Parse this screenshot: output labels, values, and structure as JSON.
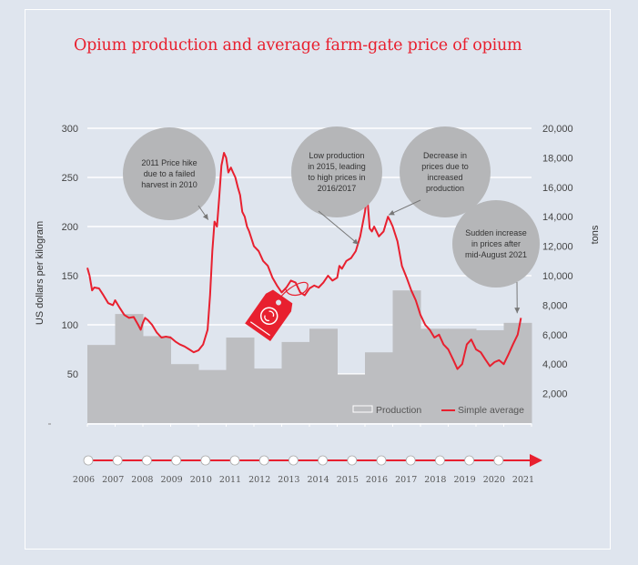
{
  "chart_data": {
    "type": "bar",
    "title": "Opium production and average farm-gate price of opium",
    "xlabel": "",
    "ylabel": "US dollars per kilogram",
    "y2label": "tons",
    "ylim": [
      0,
      300
    ],
    "y2lim": [
      0,
      20000
    ],
    "yticks": [
      "300",
      "250",
      "200",
      "150",
      "100",
      "50"
    ],
    "yticks_values": [
      300,
      250,
      200,
      150,
      100,
      50
    ],
    "y2ticks": [
      "20,000",
      "18,000",
      "16,000",
      "14,000",
      "12,000",
      "10,000",
      "8,000",
      "6,000",
      "4,000",
      "2,000"
    ],
    "y2ticks_values": [
      20000,
      18000,
      16000,
      14000,
      12000,
      10000,
      8000,
      6000,
      4000,
      2000
    ],
    "grid": true,
    "categories": [
      "2006",
      "2007",
      "2008",
      "2009",
      "2010",
      "2011",
      "2012",
      "2013",
      "2014",
      "2015",
      "2016",
      "2017",
      "2018",
      "2019",
      "2020",
      "2021"
    ],
    "series": [
      {
        "name": "Production",
        "type": "bar",
        "axis": "right",
        "color": "#bdbec1",
        "values": [
          5300,
          7400,
          5900,
          4000,
          3600,
          5800,
          3700,
          5500,
          6400,
          3300,
          4800,
          9000,
          6400,
          6400,
          6300,
          6800
        ]
      },
      {
        "name": "Simple average",
        "type": "line",
        "axis": "left",
        "color": "#e8202f",
        "x": [
          2006.0,
          2006.08,
          2006.17,
          2006.25,
          2006.42,
          2006.58,
          2006.75,
          2006.92,
          2007.0,
          2007.17,
          2007.33,
          2007.5,
          2007.67,
          2007.83,
          2007.92,
          2008.0,
          2008.08,
          2008.17,
          2008.33,
          2008.5,
          2008.67,
          2008.83,
          2009.0,
          2009.17,
          2009.33,
          2009.5,
          2009.67,
          2009.83,
          2010.0,
          2010.17,
          2010.33,
          2010.42,
          2010.5,
          2010.58,
          2010.67,
          2010.75,
          2010.83,
          2010.92,
          2011.0,
          2011.08,
          2011.17,
          2011.25,
          2011.33,
          2011.42,
          2011.5,
          2011.58,
          2011.67,
          2011.75,
          2011.83,
          2012.0,
          2012.17,
          2012.33,
          2012.5,
          2012.67,
          2012.83,
          2013.0,
          2013.17,
          2013.33,
          2013.5,
          2013.67,
          2013.83,
          2014.0,
          2014.17,
          2014.33,
          2014.5,
          2014.67,
          2014.83,
          2015.0,
          2015.08,
          2015.17,
          2015.33,
          2015.5,
          2015.67,
          2015.83,
          2016.0,
          2016.08,
          2016.17,
          2016.25,
          2016.33,
          2016.5,
          2016.67,
          2016.83,
          2016.92,
          2017.0,
          2017.17,
          2017.33,
          2017.5,
          2017.67,
          2017.83,
          2018.0,
          2018.17,
          2018.33,
          2018.5,
          2018.67,
          2018.83,
          2019.0,
          2019.17,
          2019.33,
          2019.5,
          2019.67,
          2019.83,
          2020.0,
          2020.17,
          2020.33,
          2020.5,
          2020.67,
          2020.83,
          2021.0,
          2021.17,
          2021.33,
          2021.5,
          2021.62
        ],
        "values": [
          158,
          150,
          135,
          138,
          137,
          130,
          122,
          120,
          125,
          117,
          110,
          107,
          108,
          100,
          95,
          102,
          107,
          105,
          100,
          92,
          87,
          88,
          87,
          83,
          80,
          78,
          75,
          72,
          74,
          80,
          95,
          130,
          175,
          205,
          200,
          230,
          262,
          275,
          270,
          255,
          260,
          255,
          250,
          240,
          232,
          215,
          210,
          200,
          195,
          180,
          175,
          165,
          160,
          148,
          140,
          133,
          138,
          145,
          143,
          133,
          130,
          137,
          140,
          138,
          143,
          150,
          145,
          148,
          160,
          157,
          165,
          168,
          175,
          190,
          215,
          232,
          198,
          195,
          200,
          190,
          195,
          210,
          205,
          200,
          185,
          160,
          148,
          135,
          125,
          110,
          100,
          95,
          87,
          90,
          80,
          75,
          65,
          55,
          60,
          80,
          85,
          75,
          72,
          65,
          58,
          62,
          64,
          60,
          70,
          80,
          90,
          107
        ]
      }
    ],
    "legend": {
      "position": "bottom-right",
      "items": [
        {
          "label": "Production",
          "kind": "box",
          "color": "#bdbec1"
        },
        {
          "label": "Simple average",
          "kind": "line",
          "color": "#e8202f"
        }
      ]
    },
    "annotations": [
      {
        "text": [
          "2011 Price hike",
          "due to a failed",
          "harvest in 2010"
        ],
        "points_to": {
          "x": 2010.42,
          "y": 205
        }
      },
      {
        "text": [
          "Low production",
          "in 2015, leading",
          "to high prices in",
          "2016/2017"
        ],
        "points_to": {
          "x": 2015.83,
          "y": 180
        }
      },
      {
        "text": [
          "Decrease in",
          "prices due to",
          "increased",
          "production"
        ],
        "points_to": {
          "x": 2016.92,
          "y": 210
        }
      },
      {
        "text": [
          "Sudden increase",
          "in prices after",
          "mid-August 2021"
        ],
        "points_to": {
          "x": 2021.55,
          "y": 110
        }
      }
    ]
  },
  "colors": {
    "accent": "#e8202f",
    "production": "#bdbec1",
    "bubble": "#b5b6b8",
    "background": "#dfe5ee"
  },
  "icons": {
    "price_tag": "price-tag-icon"
  }
}
